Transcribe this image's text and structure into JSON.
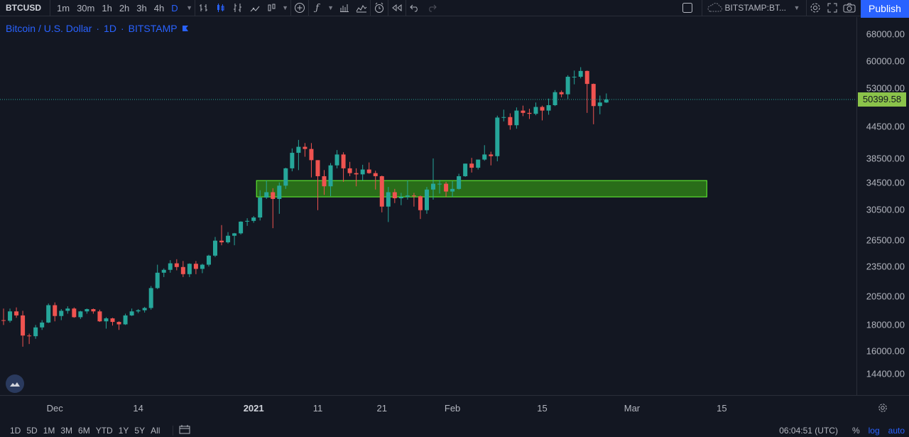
{
  "toolbar": {
    "symbol": "BTCUSD",
    "intervals": [
      "1m",
      "30m",
      "1h",
      "2h",
      "3h",
      "4h",
      "D"
    ],
    "active_interval": "D",
    "compare_symbol": "BITSTAMP:BT...",
    "publish_label": "Publish",
    "icons": [
      "bar-style-icon",
      "candles-icon",
      "indicator-icon",
      "templates-icon",
      "add-icon",
      "fx-icon",
      "bars-icon",
      "area-icon",
      "alert-icon",
      "replay-icon",
      "undo-icon",
      "redo-icon",
      "fullscreen-toggle-icon",
      "settings-icon",
      "expand-icon",
      "camera-icon"
    ]
  },
  "legend": {
    "pair": "Bitcoin / U.S. Dollar",
    "sep1": "·",
    "interval": "1D",
    "sep2": "·",
    "exchange": "BITSTAMP"
  },
  "price_axis": {
    "labels": [
      "68000.00",
      "60000.00",
      "53000.00",
      "44500.00",
      "38500.00",
      "34500.00",
      "30500.00",
      "26500.00",
      "23500.00",
      "20500.00",
      "18000.00",
      "16000.00",
      "14400.00"
    ],
    "current_price": "50399.58"
  },
  "time_axis": {
    "labels": [
      "Dec",
      "14",
      "2021",
      "11",
      "21",
      "Feb",
      "15",
      "Mar",
      "15"
    ],
    "bold_label": "2021"
  },
  "bottom_bar": {
    "ranges": [
      "1D",
      "5D",
      "1M",
      "3M",
      "6M",
      "YTD",
      "1Y",
      "5Y",
      "All"
    ],
    "clock": "06:04:51 (UTC)",
    "percent": "%",
    "log": "log",
    "auto": "auto"
  },
  "colors": {
    "background": "#131722",
    "up": "#26a69a",
    "down": "#ef5350",
    "accent": "#2962ff",
    "zone_fill": "#2e7d18",
    "zone_border": "#66ff33",
    "last_price_bg": "#8bc34a"
  },
  "chart_data": {
    "type": "candlestick",
    "title": "Bitcoin / U.S. Dollar · 1D · BITSTAMP",
    "y_scale": "log",
    "ylim": [
      13500,
      72000
    ],
    "last_price": 50399.58,
    "zone": {
      "from_date": "2021-01-01",
      "to_date": "2021-03-12",
      "low": 32300,
      "high": 34800
    },
    "candles": [
      [
        "2020-11-23",
        18400,
        19400,
        18000,
        18350
      ],
      [
        "2020-11-24",
        18350,
        19400,
        18200,
        19150
      ],
      [
        "2020-11-25",
        19150,
        19500,
        18600,
        18800
      ],
      [
        "2020-11-26",
        18800,
        19200,
        16300,
        17150
      ],
      [
        "2020-11-27",
        17150,
        17300,
        16500,
        17100
      ],
      [
        "2020-11-28",
        17100,
        18000,
        16900,
        17800
      ],
      [
        "2020-11-29",
        17800,
        18400,
        17600,
        18200
      ],
      [
        "2020-11-30",
        18200,
        19850,
        18150,
        19700
      ],
      [
        "2020-12-01",
        19700,
        19950,
        18300,
        18750
      ],
      [
        "2020-12-02",
        18750,
        19350,
        18400,
        19200
      ],
      [
        "2020-12-03",
        19200,
        19600,
        18950,
        19400
      ],
      [
        "2020-12-04",
        19400,
        19500,
        18600,
        18650
      ],
      [
        "2020-12-05",
        18650,
        19200,
        18500,
        19150
      ],
      [
        "2020-12-06",
        19150,
        19400,
        18950,
        19350
      ],
      [
        "2020-12-07",
        19350,
        19400,
        18950,
        19150
      ],
      [
        "2020-12-08",
        19150,
        19300,
        18250,
        18300
      ],
      [
        "2020-12-09",
        18300,
        18650,
        17700,
        18550
      ],
      [
        "2020-12-10",
        18550,
        18600,
        17950,
        18250
      ],
      [
        "2020-12-11",
        18250,
        18300,
        17600,
        18050
      ],
      [
        "2020-12-12",
        18050,
        18950,
        18000,
        18800
      ],
      [
        "2020-12-13",
        18800,
        19400,
        18750,
        19150
      ],
      [
        "2020-12-14",
        19150,
        19350,
        19000,
        19250
      ],
      [
        "2020-12-15",
        19250,
        19550,
        19050,
        19450
      ],
      [
        "2020-12-16",
        19450,
        21500,
        19300,
        21300
      ],
      [
        "2020-12-17",
        21300,
        23700,
        21200,
        22850
      ],
      [
        "2020-12-18",
        22850,
        23300,
        22400,
        23150
      ],
      [
        "2020-12-19",
        23150,
        24200,
        22850,
        23850
      ],
      [
        "2020-12-20",
        23850,
        24300,
        23100,
        23450
      ],
      [
        "2020-12-21",
        23450,
        24100,
        22400,
        22700
      ],
      [
        "2020-12-22",
        22700,
        23850,
        22400,
        23800
      ],
      [
        "2020-12-23",
        23800,
        24100,
        22700,
        23250
      ],
      [
        "2020-12-24",
        23250,
        23800,
        22800,
        23700
      ],
      [
        "2020-12-25",
        23700,
        24800,
        23500,
        24700
      ],
      [
        "2020-12-26",
        24700,
        26900,
        24550,
        26450
      ],
      [
        "2020-12-27",
        26450,
        28400,
        25900,
        26250
      ],
      [
        "2020-12-28",
        26250,
        27500,
        26100,
        27050
      ],
      [
        "2020-12-29",
        27050,
        27400,
        25900,
        27350
      ],
      [
        "2020-12-30",
        27350,
        28900,
        27200,
        28850
      ],
      [
        "2020-12-31",
        28850,
        29300,
        28300,
        28950
      ],
      [
        "2021-01-01",
        28950,
        29600,
        28700,
        29400
      ],
      [
        "2021-01-02",
        29400,
        33300,
        29000,
        32200
      ],
      [
        "2021-01-03",
        32200,
        34800,
        32000,
        33000
      ],
      [
        "2021-01-04",
        33000,
        33600,
        28000,
        32000
      ],
      [
        "2021-01-05",
        32000,
        34500,
        29900,
        34000
      ],
      [
        "2021-01-06",
        34000,
        36900,
        33500,
        36800
      ],
      [
        "2021-01-07",
        36800,
        40300,
        36300,
        39500
      ],
      [
        "2021-01-08",
        39500,
        41900,
        36500,
        40600
      ],
      [
        "2021-01-09",
        40600,
        41300,
        38800,
        40200
      ],
      [
        "2021-01-10",
        40200,
        41300,
        35300,
        38200
      ],
      [
        "2021-01-11",
        38200,
        38200,
        30400,
        35500
      ],
      [
        "2021-01-12",
        35500,
        36500,
        32600,
        33900
      ],
      [
        "2021-01-13",
        33900,
        37700,
        32400,
        37300
      ],
      [
        "2021-01-14",
        37300,
        40000,
        36800,
        39200
      ],
      [
        "2021-01-15",
        39200,
        39600,
        34600,
        36800
      ],
      [
        "2021-01-16",
        36800,
        37900,
        35500,
        36000
      ],
      [
        "2021-01-17",
        36000,
        36800,
        33900,
        35800
      ],
      [
        "2021-01-18",
        35800,
        37400,
        34800,
        36600
      ],
      [
        "2021-01-19",
        36600,
        37800,
        35900,
        36000
      ],
      [
        "2021-01-20",
        36000,
        36400,
        33400,
        35500
      ],
      [
        "2021-01-21",
        35500,
        35600,
        30100,
        30900
      ],
      [
        "2021-01-22",
        30900,
        33800,
        28800,
        33000
      ],
      [
        "2021-01-23",
        33000,
        33500,
        31400,
        32100
      ],
      [
        "2021-01-24",
        32100,
        32900,
        31100,
        32300
      ],
      [
        "2021-01-25",
        32300,
        34800,
        31900,
        32500
      ],
      [
        "2021-01-26",
        32500,
        32900,
        30900,
        32400
      ],
      [
        "2021-01-27",
        32400,
        32500,
        29200,
        30400
      ],
      [
        "2021-01-28",
        30400,
        33800,
        29900,
        33400
      ],
      [
        "2021-01-29",
        33400,
        38500,
        31900,
        34300
      ],
      [
        "2021-01-30",
        34300,
        34900,
        32800,
        34300
      ],
      [
        "2021-01-31",
        34300,
        34600,
        32300,
        33100
      ],
      [
        "2021-02-01",
        33100,
        34700,
        32300,
        33500
      ],
      [
        "2021-02-02",
        33500,
        35900,
        33400,
        35500
      ],
      [
        "2021-02-03",
        35500,
        37600,
        35400,
        37600
      ],
      [
        "2021-02-04",
        37600,
        38600,
        36100,
        36900
      ],
      [
        "2021-02-05",
        36900,
        38300,
        36600,
        38300
      ],
      [
        "2021-02-06",
        38300,
        40900,
        38100,
        39200
      ],
      [
        "2021-02-07",
        39200,
        39700,
        37300,
        38900
      ],
      [
        "2021-02-08",
        38900,
        46800,
        38000,
        46400
      ],
      [
        "2021-02-09",
        46400,
        48100,
        45600,
        46500
      ],
      [
        "2021-02-10",
        46500,
        47300,
        43900,
        44800
      ],
      [
        "2021-02-11",
        44800,
        48600,
        44100,
        47900
      ],
      [
        "2021-02-12",
        47900,
        49000,
        46700,
        47400
      ],
      [
        "2021-02-13",
        47400,
        48300,
        46100,
        47200
      ],
      [
        "2021-02-14",
        47200,
        49700,
        46900,
        48700
      ],
      [
        "2021-02-15",
        48700,
        49000,
        45800,
        47900
      ],
      [
        "2021-02-16",
        47900,
        50600,
        47000,
        49100
      ],
      [
        "2021-02-17",
        49100,
        52600,
        48900,
        52100
      ],
      [
        "2021-02-18",
        52100,
        52500,
        50900,
        51600
      ],
      [
        "2021-02-19",
        51600,
        56300,
        50500,
        55900
      ],
      [
        "2021-02-20",
        55900,
        57500,
        54000,
        55900
      ],
      [
        "2021-02-21",
        55900,
        58400,
        55500,
        57400
      ],
      [
        "2021-02-22",
        57400,
        57500,
        47400,
        54100
      ],
      [
        "2021-02-23",
        54100,
        54200,
        45000,
        48900
      ],
      [
        "2021-02-24",
        48900,
        51300,
        47100,
        49700
      ],
      [
        "2021-02-25",
        49700,
        51800,
        49600,
        50400
      ]
    ]
  }
}
